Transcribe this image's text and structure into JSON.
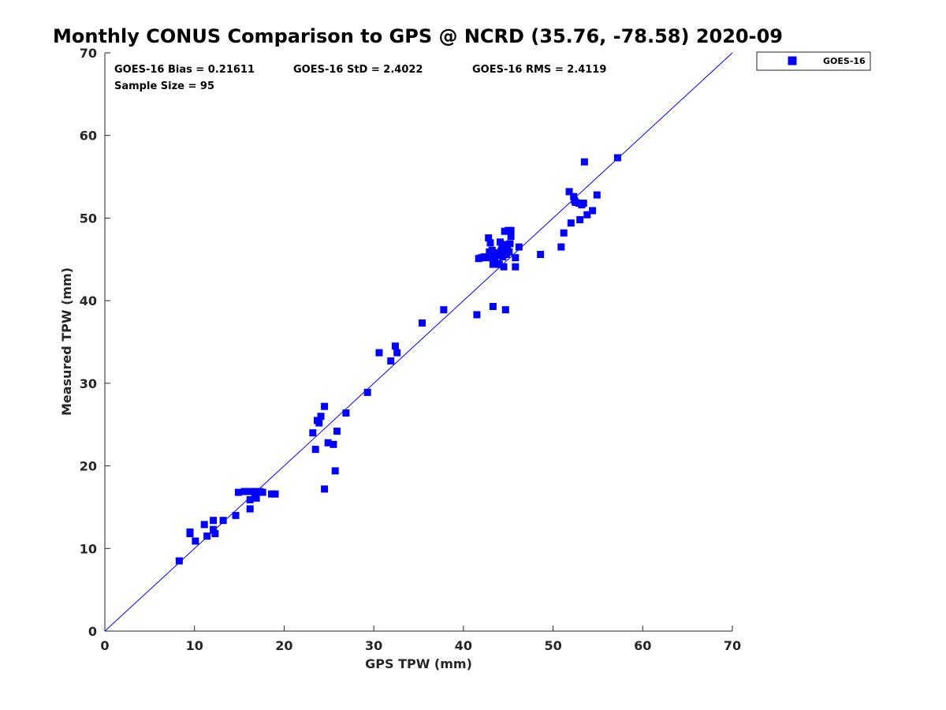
{
  "chart_data": {
    "type": "scatter",
    "title": "Monthly CONUS Comparison to GPS @ NCRD (35.76, -78.58) 2020-09",
    "xlabel": "GPS TPW (mm)",
    "ylabel": "Measured TPW (mm)",
    "xlim": [
      0,
      70
    ],
    "ylim": [
      0,
      70
    ],
    "xticks": [
      0,
      10,
      20,
      30,
      40,
      50,
      60,
      70
    ],
    "yticks": [
      0,
      10,
      20,
      30,
      40,
      50,
      60,
      70
    ],
    "grid": false,
    "legend_position": "top-right-outside",
    "stats": {
      "bias": "GOES-16 Bias = 0.21611",
      "std": "GOES-16 StD = 2.4022",
      "rms": "GOES-16 RMS = 2.4119",
      "sample_size": "Sample Size = 95"
    },
    "reference_line": {
      "x": [
        0,
        70
      ],
      "y": [
        0,
        70
      ],
      "color": "#0000ff"
    },
    "series": [
      {
        "name": "GOES-16",
        "color": "#0000ff",
        "marker": "square",
        "points": [
          [
            8.3,
            8.5
          ],
          [
            9.5,
            12.0
          ],
          [
            9.5,
            11.8
          ],
          [
            10.1,
            10.9
          ],
          [
            11.1,
            12.9
          ],
          [
            11.4,
            11.5
          ],
          [
            12.1,
            13.4
          ],
          [
            12.1,
            12.3
          ],
          [
            12.3,
            11.8
          ],
          [
            13.2,
            13.4
          ],
          [
            14.6,
            14.0
          ],
          [
            14.9,
            16.8
          ],
          [
            15.6,
            16.9
          ],
          [
            16.1,
            16.9
          ],
          [
            16.2,
            15.9
          ],
          [
            16.2,
            14.8
          ],
          [
            16.6,
            16.9
          ],
          [
            16.8,
            16.5
          ],
          [
            16.9,
            16.1
          ],
          [
            17.3,
            16.9
          ],
          [
            17.6,
            16.8
          ],
          [
            18.6,
            16.6
          ],
          [
            19.0,
            16.6
          ],
          [
            23.2,
            24.0
          ],
          [
            23.5,
            22.0
          ],
          [
            23.7,
            25.5
          ],
          [
            23.9,
            25.2
          ],
          [
            24.1,
            26.0
          ],
          [
            24.5,
            27.2
          ],
          [
            24.5,
            17.2
          ],
          [
            24.9,
            22.8
          ],
          [
            25.5,
            22.6
          ],
          [
            25.7,
            19.4
          ],
          [
            25.9,
            24.2
          ],
          [
            26.9,
            26.4
          ],
          [
            29.3,
            28.9
          ],
          [
            30.6,
            33.7
          ],
          [
            31.9,
            32.7
          ],
          [
            32.4,
            34.5
          ],
          [
            32.6,
            33.7
          ],
          [
            35.4,
            37.3
          ],
          [
            37.8,
            38.9
          ],
          [
            41.5,
            38.3
          ],
          [
            41.7,
            45.1
          ],
          [
            42.0,
            45.2
          ],
          [
            42.3,
            45.3
          ],
          [
            42.6,
            45.2
          ],
          [
            42.8,
            47.6
          ],
          [
            42.9,
            45.9
          ],
          [
            43.0,
            47.0
          ],
          [
            43.1,
            45.5
          ],
          [
            43.2,
            46.1
          ],
          [
            43.3,
            44.4
          ],
          [
            43.3,
            39.3
          ],
          [
            43.5,
            45.0
          ],
          [
            43.6,
            45.8
          ],
          [
            43.8,
            44.5
          ],
          [
            43.9,
            45.5
          ],
          [
            44.1,
            47.1
          ],
          [
            44.2,
            46.0
          ],
          [
            44.3,
            46.6
          ],
          [
            44.4,
            45.3
          ],
          [
            44.5,
            44.1
          ],
          [
            44.6,
            48.4
          ],
          [
            44.7,
            46.8
          ],
          [
            44.7,
            38.9
          ],
          [
            44.8,
            45.6
          ],
          [
            44.9,
            46.3
          ],
          [
            45.0,
            48.5
          ],
          [
            45.1,
            45.9
          ],
          [
            45.2,
            46.9
          ],
          [
            45.3,
            48.5
          ],
          [
            45.3,
            47.8
          ],
          [
            45.8,
            45.2
          ],
          [
            45.8,
            44.1
          ],
          [
            46.2,
            46.5
          ],
          [
            48.6,
            45.6
          ],
          [
            50.9,
            46.5
          ],
          [
            51.2,
            48.2
          ],
          [
            51.8,
            53.2
          ],
          [
            52.0,
            49.4
          ],
          [
            52.3,
            52.6
          ],
          [
            52.5,
            51.9
          ],
          [
            52.9,
            51.8
          ],
          [
            53.0,
            49.8
          ],
          [
            53.2,
            51.6
          ],
          [
            53.4,
            51.8
          ],
          [
            53.5,
            56.8
          ],
          [
            53.8,
            50.4
          ],
          [
            54.4,
            50.9
          ],
          [
            54.9,
            52.8
          ],
          [
            57.2,
            57.3
          ],
          [
            52.4,
            52.1
          ],
          [
            44.0,
            44.4
          ],
          [
            43.4,
            44.9
          ]
        ]
      }
    ]
  }
}
